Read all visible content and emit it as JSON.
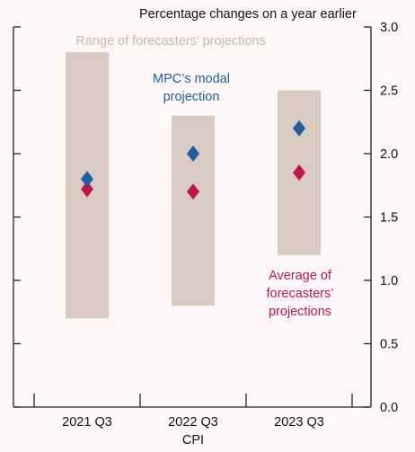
{
  "chart_data": {
    "type": "range-and-points",
    "title": "Percentage changes on a year earlier",
    "xlabel": "CPI",
    "categories": [
      "2021 Q3",
      "2022 Q3",
      "2023 Q3"
    ],
    "ylim": [
      0,
      3.0
    ],
    "yticks": [
      "0.0",
      "0.5",
      "1.0",
      "1.5",
      "2.0",
      "2.5",
      "3.0"
    ],
    "range": {
      "name": "Range of forecasters’ projections",
      "color": "#d9cbc2",
      "low": [
        0.7,
        0.8,
        1.2
      ],
      "high": [
        2.8,
        2.3,
        2.5
      ]
    },
    "modal": {
      "name_lines": [
        "MPC’s modal",
        "projection"
      ],
      "color": "#1f5fa0",
      "values": [
        1.8,
        2.0,
        2.2
      ]
    },
    "average": {
      "name_lines": [
        "Average of",
        "forecasters’",
        "projections"
      ],
      "color": "#c0144f",
      "values": [
        1.72,
        1.7,
        1.85
      ]
    },
    "grid": false,
    "yaxis_side": "right"
  }
}
